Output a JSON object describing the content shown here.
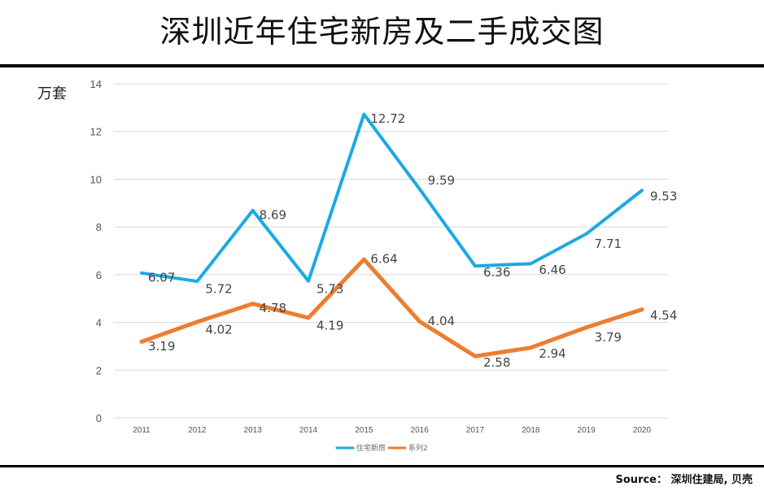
{
  "title": "深圳近年住宅新房及二手成交图",
  "unit_label": "万套",
  "source": "Source： 深圳住建局, 贝壳",
  "chart_data": {
    "type": "line",
    "categories": [
      "2011",
      "2012",
      "2013",
      "2014",
      "2015",
      "2016",
      "2017",
      "2018",
      "2019",
      "2020"
    ],
    "ylim": [
      0,
      14
    ],
    "yticks": [
      0,
      2,
      4,
      6,
      8,
      10,
      12,
      14
    ],
    "ylabel": "万套",
    "grid": true,
    "legend_position": "bottom",
    "series": [
      {
        "name": "住宅新房",
        "color": "#1CA9E6",
        "values": [
          6.07,
          5.72,
          8.69,
          5.73,
          12.72,
          9.59,
          6.36,
          6.46,
          7.71,
          9.53
        ],
        "labels": [
          "6.07",
          "5.72",
          "8.69",
          "5.73",
          "12.72",
          "9.59",
          "6.36",
          "6.46",
          "7.71",
          "9.53"
        ]
      },
      {
        "name": "系列2",
        "color": "#ED7D31",
        "values": [
          3.19,
          4.02,
          4.78,
          4.19,
          6.64,
          4.04,
          2.58,
          2.94,
          3.79,
          4.54
        ],
        "labels": [
          "3.19",
          "4.02",
          "4.78",
          "4.19",
          "6.64",
          "4.04",
          "2.58",
          "2.94",
          "3.79",
          "4.54"
        ]
      }
    ]
  }
}
